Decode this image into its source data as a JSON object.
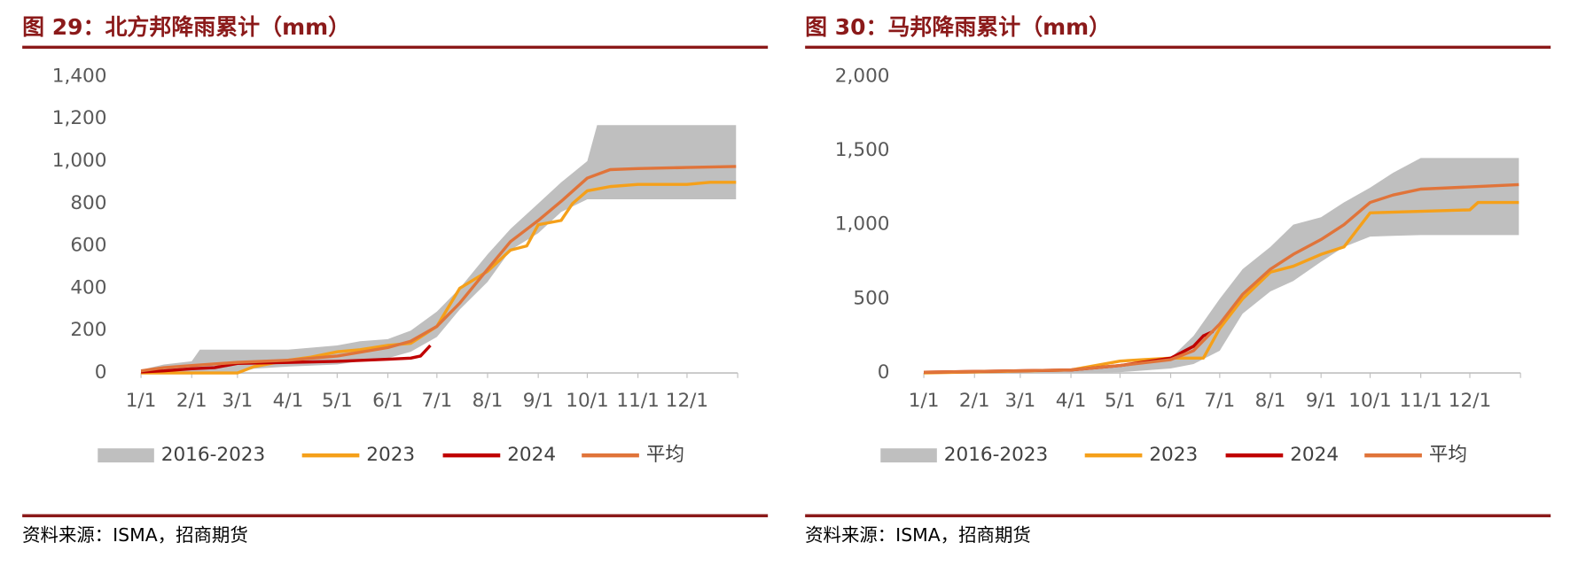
{
  "chart_data": [
    {
      "type": "line",
      "title": "图 29：北方邦降雨累计（mm）",
      "source": "资料来源：ISMA，招商期货",
      "xlim": [
        1,
        366
      ],
      "xticks": [
        {
          "value": 1,
          "label": "1/1"
        },
        {
          "value": 32,
          "label": "2/1"
        },
        {
          "value": 60,
          "label": "3/1"
        },
        {
          "value": 91,
          "label": "4/1"
        },
        {
          "value": 121,
          "label": "5/1"
        },
        {
          "value": 152,
          "label": "6/1"
        },
        {
          "value": 182,
          "label": "7/1"
        },
        {
          "value": 213,
          "label": "8/1"
        },
        {
          "value": 244,
          "label": "9/1"
        },
        {
          "value": 274,
          "label": "10/1"
        },
        {
          "value": 305,
          "label": "11/1"
        },
        {
          "value": 335,
          "label": "12/1"
        }
      ],
      "ylim": [
        0,
        1400
      ],
      "yticks": [
        0,
        200,
        400,
        600,
        800,
        {
          "value": 1000,
          "label": "1,000"
        },
        {
          "value": 1200,
          "label": "1,200"
        },
        {
          "value": 1400,
          "label": "1,400"
        }
      ],
      "range": {
        "name": "2016-2023",
        "color": "#bfbfbf",
        "x": [
          1,
          15,
          32,
          37,
          60,
          70,
          91,
          121,
          135,
          152,
          166,
          182,
          196,
          213,
          227,
          244,
          258,
          274,
          280,
          365
        ],
        "upper": [
          15,
          40,
          55,
          110,
          110,
          110,
          110,
          130,
          150,
          160,
          200,
          290,
          400,
          560,
          680,
          800,
          900,
          1000,
          1170,
          1170
        ],
        "lower": [
          0,
          0,
          0,
          0,
          0,
          20,
          30,
          40,
          55,
          70,
          100,
          170,
          300,
          430,
          580,
          660,
          760,
          820,
          820,
          820
        ]
      },
      "series": [
        {
          "name": "2023",
          "color": "#f5a01a",
          "x": [
            1,
            60,
            70,
            91,
            105,
            121,
            135,
            152,
            166,
            182,
            196,
            213,
            227,
            237,
            244,
            258,
            265,
            274,
            288,
            305,
            335,
            349,
            365
          ],
          "values": [
            0,
            0,
            30,
            60,
            75,
            100,
            110,
            130,
            140,
            220,
            400,
            480,
            580,
            600,
            700,
            720,
            800,
            860,
            880,
            890,
            890,
            900,
            900
          ]
        },
        {
          "name": "2024",
          "color": "#c00000",
          "x": [
            1,
            15,
            32,
            46,
            60,
            91,
            121,
            152,
            166,
            172,
            178
          ],
          "values": [
            5,
            10,
            20,
            25,
            45,
            50,
            55,
            65,
            70,
            80,
            130
          ]
        },
        {
          "name": "平均",
          "color": "#e0743a",
          "x": [
            1,
            15,
            32,
            60,
            91,
            121,
            152,
            166,
            182,
            196,
            213,
            227,
            244,
            258,
            274,
            288,
            305,
            335,
            365
          ],
          "values": [
            10,
            25,
            35,
            50,
            60,
            80,
            120,
            150,
            220,
            330,
            490,
            620,
            720,
            810,
            920,
            960,
            965,
            970,
            975
          ]
        }
      ]
    },
    {
      "type": "line",
      "title": "图 30：马邦降雨累计（mm）",
      "source": "资料来源：ISMA，招商期货",
      "xlim": [
        1,
        366
      ],
      "xticks": [
        {
          "value": 1,
          "label": "1/1"
        },
        {
          "value": 32,
          "label": "2/1"
        },
        {
          "value": 60,
          "label": "3/1"
        },
        {
          "value": 91,
          "label": "4/1"
        },
        {
          "value": 121,
          "label": "5/1"
        },
        {
          "value": 152,
          "label": "6/1"
        },
        {
          "value": 182,
          "label": "7/1"
        },
        {
          "value": 213,
          "label": "8/1"
        },
        {
          "value": 244,
          "label": "9/1"
        },
        {
          "value": 274,
          "label": "10/1"
        },
        {
          "value": 305,
          "label": "11/1"
        },
        {
          "value": 335,
          "label": "12/1"
        }
      ],
      "ylim": [
        0,
        2000
      ],
      "yticks": [
        0,
        500,
        {
          "value": 1000,
          "label": "1,000"
        },
        {
          "value": 1500,
          "label": "1,500"
        },
        {
          "value": 2000,
          "label": "2,000"
        }
      ],
      "range": {
        "name": "2016-2023",
        "color": "#bfbfbf",
        "x": [
          1,
          91,
          121,
          152,
          166,
          182,
          196,
          213,
          227,
          244,
          258,
          274,
          288,
          305,
          365
        ],
        "upper": [
          10,
          20,
          40,
          100,
          250,
          500,
          700,
          850,
          1000,
          1050,
          1150,
          1250,
          1350,
          1450,
          1450
        ],
        "lower": [
          0,
          0,
          5,
          30,
          60,
          150,
          400,
          550,
          620,
          750,
          850,
          920,
          925,
          930,
          930
        ]
      },
      "series": [
        {
          "name": "2023",
          "color": "#f5a01a",
          "x": [
            1,
            91,
            121,
            135,
            152,
            172,
            182,
            196,
            213,
            227,
            244,
            258,
            274,
            335,
            340,
            365
          ],
          "values": [
            0,
            20,
            80,
            90,
            100,
            100,
            300,
            500,
            680,
            720,
            800,
            850,
            1080,
            1100,
            1150,
            1150
          ]
        },
        {
          "name": "2024",
          "color": "#c00000",
          "x": [
            1,
            91,
            121,
            152,
            166,
            172,
            178
          ],
          "values": [
            5,
            20,
            50,
            100,
            180,
            250,
            280
          ]
        },
        {
          "name": "平均",
          "color": "#e0743a",
          "x": [
            1,
            91,
            121,
            152,
            166,
            182,
            196,
            213,
            227,
            244,
            258,
            274,
            288,
            305,
            365
          ],
          "values": [
            5,
            20,
            50,
            90,
            150,
            330,
            530,
            700,
            800,
            900,
            1000,
            1150,
            1200,
            1240,
            1270
          ]
        }
      ]
    }
  ]
}
